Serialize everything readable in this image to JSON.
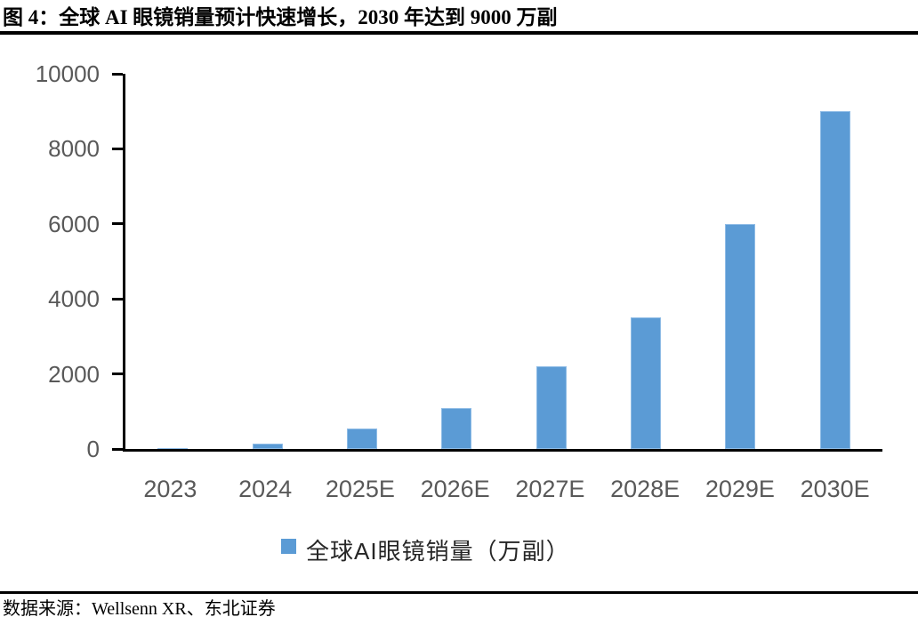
{
  "figure": {
    "title": "图 4：全球 AI 眼镜销量预计快速增长，2030 年达到 9000 万副",
    "source": "数据来源：Wellsenn XR、东北证券"
  },
  "chart_data": {
    "type": "bar",
    "title": "图 4：全球 AI 眼镜销量预计快速增长，2030 年达到 9000 万副",
    "categories": [
      "2023",
      "2024",
      "2025E",
      "2026E",
      "2027E",
      "2028E",
      "2029E",
      "2030E"
    ],
    "values": [
      20,
      150,
      550,
      1100,
      2200,
      3500,
      6000,
      9000
    ],
    "series_name": "全球AI眼镜销量（万副）",
    "legend": "全球AI眼镜销量（万副）",
    "legend_position": "bottom",
    "xlabel": "",
    "ylabel": "",
    "ylim": [
      0,
      10000
    ],
    "yticks": [
      0,
      2000,
      4000,
      6000,
      8000,
      10000
    ],
    "grid": false,
    "bar_color": "#5B9BD5",
    "bar_border_color": "#8FBCE6",
    "axis_color": "#000000",
    "tick_label_color": "#595959",
    "source": "数据来源：Wellsenn XR、东北证券"
  }
}
